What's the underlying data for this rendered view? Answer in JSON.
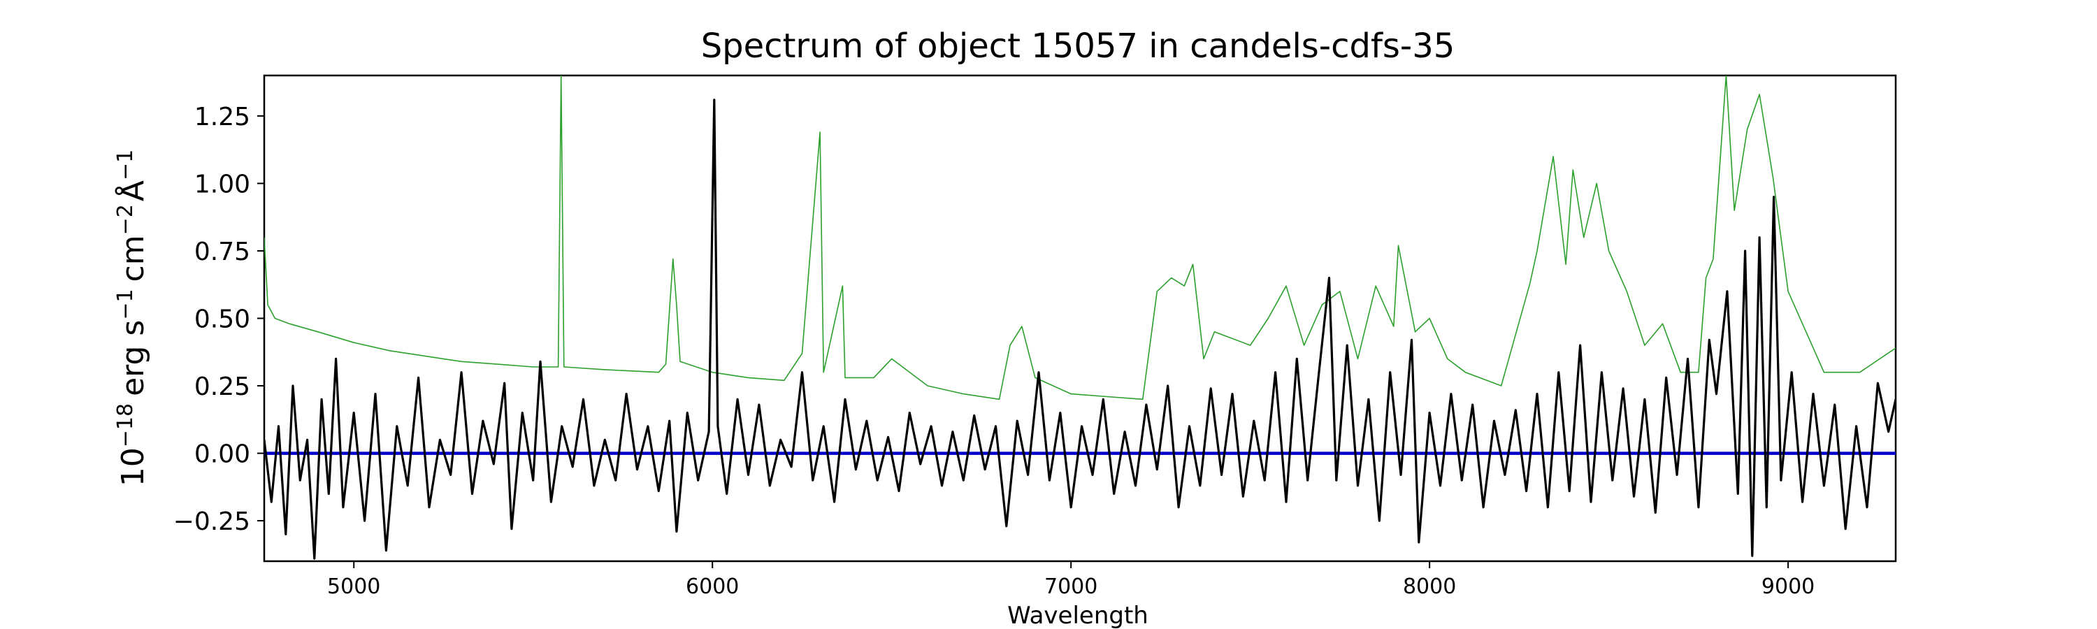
{
  "chart_data": {
    "type": "line",
    "title": "Spectrum of object 15057 in candels-cdfs-35",
    "xlabel": "Wavelength",
    "ylabel": {
      "base": "10",
      "exp": "−18",
      "erg": "erg s",
      "s_exp": "−1",
      "cm": "cm",
      "cm_exp": "−2",
      "A": "Å",
      "A_exp": "−1"
    },
    "xlim": [
      4750,
      9300
    ],
    "ylim": [
      -0.4,
      1.4
    ],
    "xticks": [
      5000,
      6000,
      7000,
      8000,
      9000
    ],
    "yticks": [
      -0.25,
      0.0,
      0.25,
      0.5,
      0.75,
      1.0,
      1.25
    ],
    "ytick_labels": [
      "−0.25",
      "0.00",
      "0.25",
      "0.50",
      "0.75",
      "1.00",
      "1.25"
    ],
    "grid": false,
    "series": [
      {
        "role": "error",
        "color": "#2ca02c",
        "values": [
          [
            4750,
            0.8
          ],
          [
            4760,
            0.55
          ],
          [
            4780,
            0.5
          ],
          [
            4820,
            0.48
          ],
          [
            4900,
            0.45
          ],
          [
            5000,
            0.41
          ],
          [
            5100,
            0.38
          ],
          [
            5200,
            0.36
          ],
          [
            5300,
            0.34
          ],
          [
            5400,
            0.33
          ],
          [
            5500,
            0.32
          ],
          [
            5570,
            0.32
          ],
          [
            5578,
            1.4
          ],
          [
            5586,
            0.32
          ],
          [
            5700,
            0.31
          ],
          [
            5850,
            0.3
          ],
          [
            5870,
            0.33
          ],
          [
            5890,
            0.72
          ],
          [
            5900,
            0.55
          ],
          [
            5910,
            0.34
          ],
          [
            6000,
            0.3
          ],
          [
            6100,
            0.28
          ],
          [
            6200,
            0.27
          ],
          [
            6250,
            0.37
          ],
          [
            6300,
            1.19
          ],
          [
            6310,
            0.3
          ],
          [
            6363,
            0.62
          ],
          [
            6370,
            0.28
          ],
          [
            6450,
            0.28
          ],
          [
            6500,
            0.35
          ],
          [
            6600,
            0.25
          ],
          [
            6700,
            0.22
          ],
          [
            6800,
            0.2
          ],
          [
            6830,
            0.4
          ],
          [
            6863,
            0.47
          ],
          [
            6900,
            0.28
          ],
          [
            7000,
            0.22
          ],
          [
            7100,
            0.21
          ],
          [
            7200,
            0.2
          ],
          [
            7240,
            0.6
          ],
          [
            7280,
            0.65
          ],
          [
            7316,
            0.62
          ],
          [
            7340,
            0.7
          ],
          [
            7370,
            0.35
          ],
          [
            7400,
            0.45
          ],
          [
            7500,
            0.4
          ],
          [
            7550,
            0.5
          ],
          [
            7600,
            0.62
          ],
          [
            7650,
            0.4
          ],
          [
            7700,
            0.55
          ],
          [
            7750,
            0.6
          ],
          [
            7800,
            0.35
          ],
          [
            7850,
            0.62
          ],
          [
            7900,
            0.47
          ],
          [
            7913,
            0.77
          ],
          [
            7960,
            0.45
          ],
          [
            8000,
            0.5
          ],
          [
            8050,
            0.35
          ],
          [
            8100,
            0.3
          ],
          [
            8200,
            0.25
          ],
          [
            8280,
            0.63
          ],
          [
            8300,
            0.75
          ],
          [
            8345,
            1.1
          ],
          [
            8380,
            0.7
          ],
          [
            8400,
            1.05
          ],
          [
            8430,
            0.8
          ],
          [
            8466,
            1.0
          ],
          [
            8500,
            0.75
          ],
          [
            8550,
            0.6
          ],
          [
            8600,
            0.4
          ],
          [
            8650,
            0.48
          ],
          [
            8700,
            0.3
          ],
          [
            8750,
            0.3
          ],
          [
            8771,
            0.65
          ],
          [
            8791,
            0.72
          ],
          [
            8827,
            1.4
          ],
          [
            8850,
            0.9
          ],
          [
            8886,
            1.2
          ],
          [
            8920,
            1.33
          ],
          [
            8958,
            1.02
          ],
          [
            9000,
            0.6
          ],
          [
            9050,
            0.45
          ],
          [
            9100,
            0.3
          ],
          [
            9200,
            0.3
          ],
          [
            9300,
            0.39
          ]
        ]
      },
      {
        "role": "flux",
        "color": "#000000",
        "values": [
          [
            4750,
            0.05
          ],
          [
            4770,
            -0.18
          ],
          [
            4790,
            0.1
          ],
          [
            4810,
            -0.3
          ],
          [
            4830,
            0.25
          ],
          [
            4850,
            -0.1
          ],
          [
            4870,
            0.05
          ],
          [
            4890,
            -0.39
          ],
          [
            4910,
            0.2
          ],
          [
            4930,
            -0.15
          ],
          [
            4950,
            0.35
          ],
          [
            4970,
            -0.2
          ],
          [
            5000,
            0.15
          ],
          [
            5030,
            -0.25
          ],
          [
            5060,
            0.22
          ],
          [
            5090,
            -0.36
          ],
          [
            5120,
            0.1
          ],
          [
            5150,
            -0.12
          ],
          [
            5180,
            0.28
          ],
          [
            5210,
            -0.2
          ],
          [
            5240,
            0.05
          ],
          [
            5270,
            -0.08
          ],
          [
            5300,
            0.3
          ],
          [
            5330,
            -0.15
          ],
          [
            5360,
            0.12
          ],
          [
            5390,
            -0.04
          ],
          [
            5420,
            0.26
          ],
          [
            5440,
            -0.28
          ],
          [
            5470,
            0.15
          ],
          [
            5500,
            -0.1
          ],
          [
            5520,
            0.34
          ],
          [
            5550,
            -0.18
          ],
          [
            5580,
            0.1
          ],
          [
            5610,
            -0.05
          ],
          [
            5640,
            0.2
          ],
          [
            5670,
            -0.12
          ],
          [
            5700,
            0.05
          ],
          [
            5730,
            -0.1
          ],
          [
            5760,
            0.22
          ],
          [
            5790,
            -0.06
          ],
          [
            5820,
            0.1
          ],
          [
            5850,
            -0.14
          ],
          [
            5880,
            0.12
          ],
          [
            5900,
            -0.29
          ],
          [
            5930,
            0.15
          ],
          [
            5960,
            -0.1
          ],
          [
            5990,
            0.08
          ],
          [
            6005,
            1.31
          ],
          [
            6015,
            0.1
          ],
          [
            6040,
            -0.15
          ],
          [
            6070,
            0.2
          ],
          [
            6100,
            -0.08
          ],
          [
            6130,
            0.18
          ],
          [
            6160,
            -0.12
          ],
          [
            6190,
            0.05
          ],
          [
            6220,
            -0.05
          ],
          [
            6250,
            0.3
          ],
          [
            6280,
            -0.1
          ],
          [
            6310,
            0.1
          ],
          [
            6340,
            -0.18
          ],
          [
            6370,
            0.2
          ],
          [
            6400,
            -0.06
          ],
          [
            6430,
            0.12
          ],
          [
            6460,
            -0.1
          ],
          [
            6490,
            0.06
          ],
          [
            6520,
            -0.14
          ],
          [
            6550,
            0.15
          ],
          [
            6580,
            -0.04
          ],
          [
            6610,
            0.1
          ],
          [
            6640,
            -0.12
          ],
          [
            6670,
            0.08
          ],
          [
            6700,
            -0.1
          ],
          [
            6730,
            0.14
          ],
          [
            6760,
            -0.06
          ],
          [
            6790,
            0.1
          ],
          [
            6820,
            -0.27
          ],
          [
            6850,
            0.12
          ],
          [
            6880,
            -0.08
          ],
          [
            6910,
            0.3
          ],
          [
            6940,
            -0.1
          ],
          [
            6970,
            0.15
          ],
          [
            7000,
            -0.2
          ],
          [
            7030,
            0.1
          ],
          [
            7060,
            -0.08
          ],
          [
            7090,
            0.2
          ],
          [
            7120,
            -0.15
          ],
          [
            7150,
            0.08
          ],
          [
            7180,
            -0.12
          ],
          [
            7210,
            0.18
          ],
          [
            7240,
            -0.06
          ],
          [
            7270,
            0.25
          ],
          [
            7300,
            -0.2
          ],
          [
            7330,
            0.1
          ],
          [
            7360,
            -0.12
          ],
          [
            7390,
            0.24
          ],
          [
            7420,
            -0.08
          ],
          [
            7450,
            0.22
          ],
          [
            7480,
            -0.16
          ],
          [
            7510,
            0.12
          ],
          [
            7540,
            -0.1
          ],
          [
            7570,
            0.3
          ],
          [
            7600,
            -0.18
          ],
          [
            7630,
            0.35
          ],
          [
            7660,
            -0.1
          ],
          [
            7690,
            0.28
          ],
          [
            7720,
            0.65
          ],
          [
            7740,
            -0.1
          ],
          [
            7770,
            0.4
          ],
          [
            7800,
            -0.12
          ],
          [
            7830,
            0.2
          ],
          [
            7860,
            -0.25
          ],
          [
            7890,
            0.3
          ],
          [
            7920,
            -0.08
          ],
          [
            7950,
            0.42
          ],
          [
            7970,
            -0.33
          ],
          [
            8000,
            0.15
          ],
          [
            8030,
            -0.12
          ],
          [
            8060,
            0.22
          ],
          [
            8090,
            -0.1
          ],
          [
            8120,
            0.18
          ],
          [
            8150,
            -0.2
          ],
          [
            8180,
            0.12
          ],
          [
            8210,
            -0.08
          ],
          [
            8240,
            0.16
          ],
          [
            8270,
            -0.14
          ],
          [
            8300,
            0.22
          ],
          [
            8330,
            -0.2
          ],
          [
            8360,
            0.3
          ],
          [
            8390,
            -0.14
          ],
          [
            8420,
            0.4
          ],
          [
            8450,
            -0.18
          ],
          [
            8480,
            0.3
          ],
          [
            8510,
            -0.1
          ],
          [
            8540,
            0.24
          ],
          [
            8570,
            -0.16
          ],
          [
            8600,
            0.2
          ],
          [
            8630,
            -0.22
          ],
          [
            8660,
            0.28
          ],
          [
            8690,
            -0.08
          ],
          [
            8720,
            0.35
          ],
          [
            8750,
            -0.2
          ],
          [
            8780,
            0.42
          ],
          [
            8800,
            0.22
          ],
          [
            8830,
            0.6
          ],
          [
            8860,
            -0.15
          ],
          [
            8880,
            0.75
          ],
          [
            8900,
            -0.38
          ],
          [
            8920,
            0.8
          ],
          [
            8940,
            -0.2
          ],
          [
            8960,
            0.95
          ],
          [
            8980,
            -0.1
          ],
          [
            9010,
            0.3
          ],
          [
            9040,
            -0.18
          ],
          [
            9070,
            0.22
          ],
          [
            9100,
            -0.12
          ],
          [
            9130,
            0.18
          ],
          [
            9160,
            -0.28
          ],
          [
            9190,
            0.1
          ],
          [
            9220,
            -0.2
          ],
          [
            9250,
            0.26
          ],
          [
            9280,
            0.08
          ],
          [
            9300,
            0.2
          ]
        ]
      },
      {
        "role": "zero-line",
        "color": "#0000cc",
        "values": [
          [
            4750,
            0.0
          ],
          [
            9300,
            0.0
          ]
        ]
      }
    ]
  }
}
